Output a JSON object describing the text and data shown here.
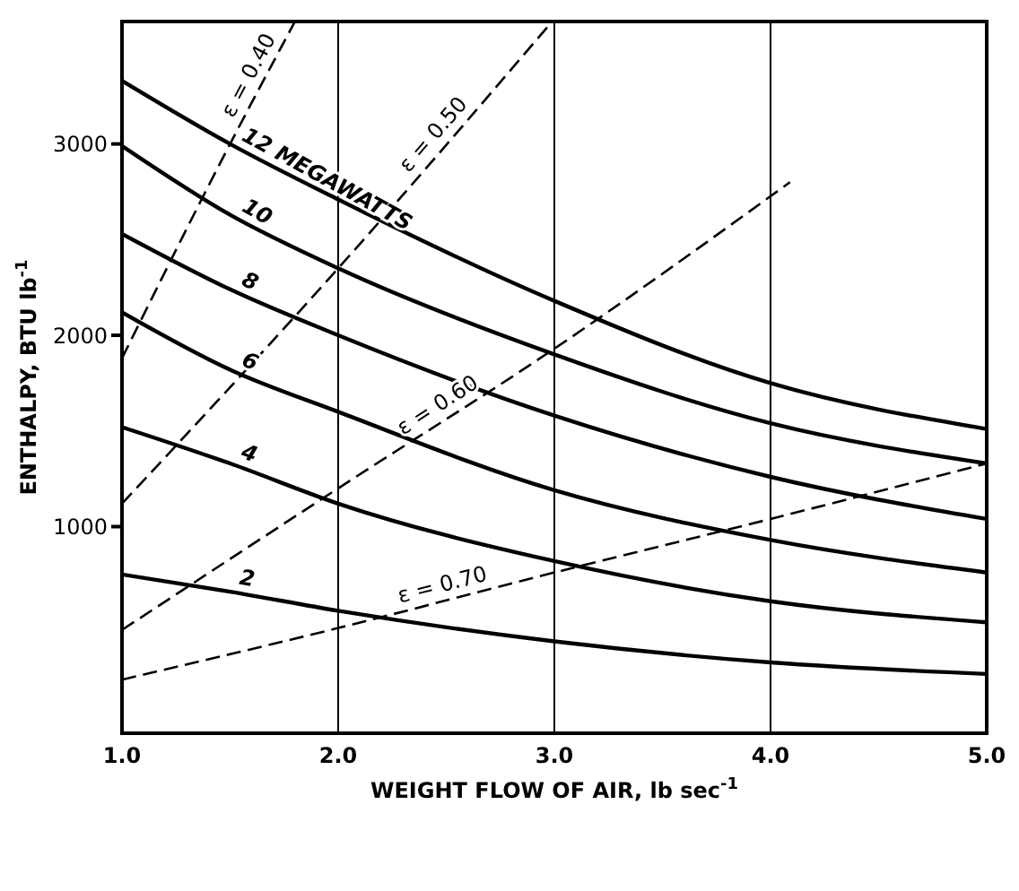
{
  "chart_data": {
    "type": "line",
    "xlabel": "WEIGHT FLOW OF AIR, lb sec$^{-1}$",
    "ylabel": "ENTHALPY, BTU lb$^{-1}$",
    "xlim": [
      1,
      5
    ],
    "ylim": [
      -80,
      3640
    ],
    "xticks": [
      {
        "value": 1,
        "label": "1.0"
      },
      {
        "value": 2,
        "label": "2.0"
      },
      {
        "value": 3,
        "label": "3.0"
      },
      {
        "value": 4,
        "label": "4.0"
      },
      {
        "value": 5,
        "label": "5.0"
      }
    ],
    "yticks": [
      1000,
      2000,
      3000
    ],
    "grid": "x",
    "marker": "none",
    "legend": false,
    "series": [
      {
        "name": "12 MEGAWATTS",
        "color": "#000000",
        "line_style": "solid",
        "x": [
          1,
          1.5,
          2,
          3,
          4,
          5
        ],
        "values": [
          3330,
          3000,
          2710,
          2180,
          1750,
          1510
        ]
      },
      {
        "name": "10",
        "color": "#000000",
        "line_style": "solid",
        "x": [
          1,
          1.5,
          2,
          3,
          4,
          5
        ],
        "values": [
          2990,
          2630,
          2350,
          1900,
          1540,
          1330
        ]
      },
      {
        "name": "8",
        "color": "#000000",
        "line_style": "solid",
        "x": [
          1,
          1.5,
          2,
          3,
          4,
          5
        ],
        "values": [
          2530,
          2240,
          2000,
          1580,
          1260,
          1040
        ]
      },
      {
        "name": "6",
        "color": "#000000",
        "line_style": "solid",
        "x": [
          1,
          1.5,
          2,
          3,
          4,
          5
        ],
        "values": [
          2120,
          1820,
          1600,
          1190,
          930,
          760
        ]
      },
      {
        "name": "4",
        "color": "#000000",
        "line_style": "solid",
        "x": [
          1,
          1.5,
          2,
          3,
          4,
          5
        ],
        "values": [
          1520,
          1330,
          1120,
          820,
          610,
          500
        ]
      },
      {
        "name": "2",
        "color": "#000000",
        "line_style": "solid",
        "x": [
          1,
          1.5,
          2,
          3,
          4,
          5
        ],
        "values": [
          750,
          660,
          560,
          400,
          290,
          230
        ]
      },
      {
        "name": "ε = 0.40",
        "color": "#000000",
        "line_style": "dashed",
        "x": [
          1,
          1.5,
          1.8
        ],
        "values": [
          1880,
          3000,
          3640
        ]
      },
      {
        "name": "ε = 0.50",
        "color": "#000000",
        "line_style": "dashed",
        "x": [
          1,
          2,
          2.99
        ],
        "values": [
          1120,
          2350,
          3640
        ]
      },
      {
        "name": "ε = 0.60",
        "color": "#000000",
        "line_style": "dashed",
        "x": [
          1,
          2,
          3,
          4.09
        ],
        "values": [
          460,
          1200,
          1930,
          2800
        ]
      },
      {
        "name": "ε = 0.70",
        "color": "#000000",
        "line_style": "dashed",
        "x": [
          1,
          2,
          3,
          4,
          5
        ],
        "values": [
          200,
          470,
          760,
          1040,
          1330
        ]
      }
    ]
  }
}
